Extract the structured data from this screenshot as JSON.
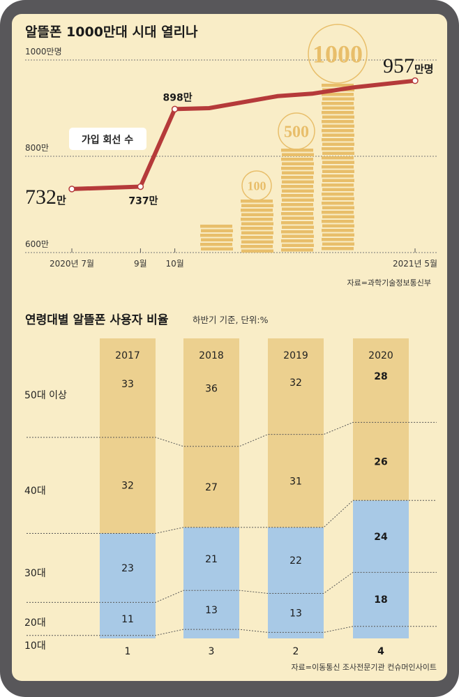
{
  "colors": {
    "frame": "#58575a",
    "panel": "#f9edc7",
    "line": "#b53a3a",
    "coin": "#e8be6a",
    "older": "#ecd08f",
    "younger": "#a8c9e6"
  },
  "chart_data": [
    {
      "type": "line",
      "title": "알뜰폰 1000만대 시대 열리나",
      "series_label": "가입 회선 수",
      "ylim": [
        600,
        1000
      ],
      "yticks": [
        {
          "v": 1000,
          "label": "1000만명"
        },
        {
          "v": 800,
          "label": "800만"
        },
        {
          "v": 600,
          "label": "600만"
        }
      ],
      "xtick_labels": [
        {
          "m": 0,
          "label": "2020년 7월"
        },
        {
          "m": 2,
          "label": "9월"
        },
        {
          "m": 3,
          "label": "10월"
        },
        {
          "m": 10,
          "label": "2021년 5월"
        }
      ],
      "points": [
        {
          "m": 0,
          "v": 732,
          "label": "732",
          "unit": "만"
        },
        {
          "m": 2,
          "v": 737,
          "label": "737만"
        },
        {
          "m": 3,
          "v": 898,
          "label": "898만"
        },
        {
          "m": 4,
          "v": 900
        },
        {
          "m": 6,
          "v": 925
        },
        {
          "m": 7,
          "v": 930
        },
        {
          "m": 8.2,
          "v": 943
        },
        {
          "m": 10,
          "v": 957,
          "label": "957",
          "unit": "만명"
        }
      ],
      "coins": [
        "100",
        "500",
        "1000"
      ],
      "source": "자료=과학기술정보통신부"
    },
    {
      "type": "bar",
      "stacked": true,
      "title": "연령대별 알뜰폰 사용자 비율",
      "subtitle": "하반기 기준, 단위:%",
      "categories": [
        "2017",
        "2018",
        "2019",
        "2020"
      ],
      "series": [
        {
          "name": "10대",
          "values": [
            1,
            3,
            2,
            4
          ],
          "color": "#a8c9e6"
        },
        {
          "name": "20대",
          "values": [
            11,
            13,
            13,
            18
          ],
          "color": "#a8c9e6"
        },
        {
          "name": "30대",
          "values": [
            23,
            21,
            22,
            24
          ],
          "color": "#a8c9e6"
        },
        {
          "name": "40대",
          "values": [
            32,
            27,
            31,
            26
          ],
          "color": "#ecd08f"
        },
        {
          "name": "50대 이상",
          "values": [
            33,
            36,
            32,
            28
          ],
          "color": "#ecd08f"
        }
      ],
      "ylim": [
        0,
        100
      ],
      "source": "자료=이동통신 조사전문기관 컨슈머인사이트"
    }
  ]
}
